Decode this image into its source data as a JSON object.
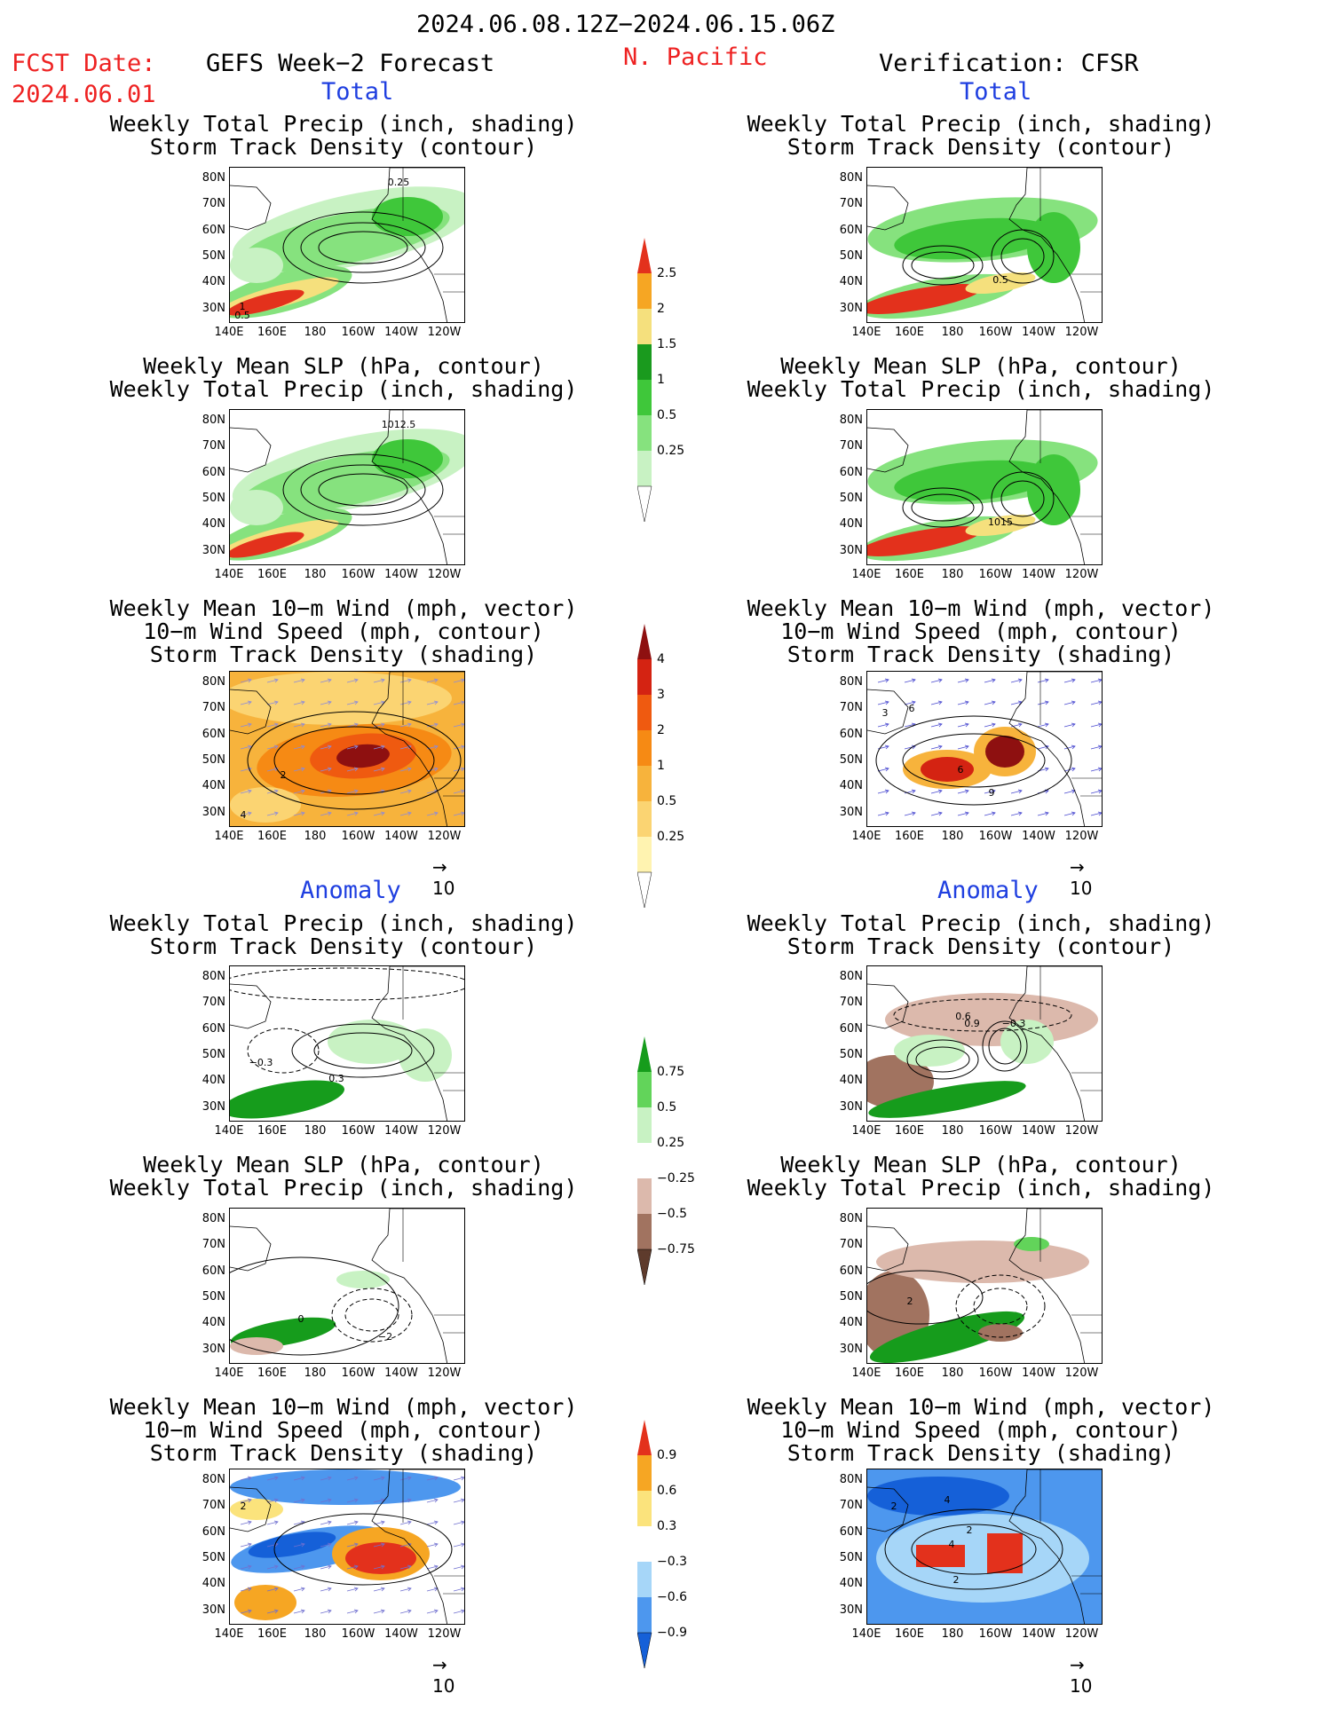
{
  "header": {
    "period": "2024.06.08.12Z−2024.06.15.06Z",
    "fcst_label": "FCST Date:",
    "fcst_date": "2024.06.01",
    "model": "GEFS Week−2 Forecast",
    "region": "N. Pacific",
    "verification": "Verification: CFSR"
  },
  "sections": {
    "total": "Total",
    "anomaly": "Anomaly"
  },
  "titles": {
    "precip_std": "Weekly Total Precip (inch, shading)\nStorm Track Density (contour)",
    "slp_precip": "Weekly Mean SLP (hPa, contour)\nWeekly Total Precip (inch, shading)",
    "wind_std": "Weekly Mean 10−m Wind (mph, vector)\n10−m Wind Speed (mph, contour)\nStorm Track Density (shading)"
  },
  "axes": {
    "lat_labels": [
      "80N",
      "70N",
      "60N",
      "50N",
      "40N",
      "30N"
    ],
    "lon_labels": [
      "140E",
      "160E",
      "180",
      "160W",
      "140W",
      "120W"
    ]
  },
  "vector_ref": "10",
  "colors": {
    "precip_levels": [
      "#c8f2c3",
      "#86e27e",
      "#3fc73a",
      "#1a9a1e",
      "#f5e07d",
      "#f6a623",
      "#e3311c"
    ],
    "std_levels": [
      "#fff3b0",
      "#fbd472",
      "#f7b33c",
      "#f68a14",
      "#ef5a10",
      "#d42312",
      "#8e1010"
    ],
    "precip_anom": [
      "#5e3b2c",
      "#a17360",
      "#dcb9ac",
      "#ffffff",
      "#c8f2c3",
      "#62d45a",
      "#169c1c"
    ],
    "std_anom": [
      "#1560d8",
      "#4d97ee",
      "#a6d6f8",
      "#ffffff",
      "#fbe37c",
      "#f6a623",
      "#e3311c"
    ]
  },
  "colorbars": [
    {
      "labels": [
        "2.5",
        "2",
        "1.5",
        "1",
        "0.5",
        "0.25"
      ]
    },
    {
      "labels": [
        "4",
        "3",
        "2",
        "1",
        "0.5",
        "0.25"
      ]
    },
    {
      "labels": [
        "0.75",
        "0.5",
        "0.25",
        "−0.25",
        "−0.5",
        "−0.75"
      ]
    },
    {
      "labels": [
        "0.9",
        "0.6",
        "0.3",
        "−0.3",
        "−0.6",
        "−0.9"
      ]
    }
  ],
  "panel_labels": {
    "fc_total_precip": [
      "0.25",
      "1",
      "0.5"
    ],
    "vf_total_precip": [
      "0.5"
    ],
    "fc_total_slp": [
      "1012.5"
    ],
    "vf_total_slp": [
      "1015"
    ],
    "fc_total_wind": [
      "2",
      "4"
    ],
    "vf_total_wind": [
      "6",
      "6",
      "9",
      "3"
    ],
    "fc_anom_precip": [
      "−0.3",
      "0.3"
    ],
    "vf_anom_precip": [
      "0.6",
      "0.9",
      "−0.3"
    ],
    "fc_anom_slp": [
      "0",
      "−2"
    ],
    "vf_anom_slp": [
      "2"
    ],
    "fc_anom_wind": [
      "2"
    ],
    "vf_anom_wind": [
      "2",
      "4",
      "4",
      "2",
      "2"
    ]
  },
  "chart_data": [
    {
      "type": "heatmap",
      "panel": "forecast-total-precip",
      "title": "Weekly Total Precip (inch, shading)\nStorm Track Density (contour)",
      "xlabel": "",
      "ylabel": "",
      "x_range": [
        "140E",
        "120W"
      ],
      "y_range": [
        "30N",
        "80N"
      ],
      "contour_labels": [
        "0.25",
        "1",
        "0.5"
      ],
      "colorbar_levels": [
        0.25,
        0.5,
        1,
        1.5,
        2,
        2.5
      ]
    },
    {
      "type": "heatmap",
      "panel": "verification-total-precip",
      "title": "Weekly Total Precip (inch, shading)\nStorm Track Density (contour)",
      "x_range": [
        "140E",
        "120W"
      ],
      "y_range": [
        "30N",
        "80N"
      ],
      "contour_labels": [
        "0.5"
      ],
      "colorbar_levels": [
        0.25,
        0.5,
        1,
        1.5,
        2,
        2.5
      ]
    },
    {
      "type": "heatmap",
      "panel": "forecast-total-slp",
      "title": "Weekly Mean SLP (hPa, contour)\nWeekly Total Precip (inch, shading)",
      "contour_labels": [
        "1012.5"
      ],
      "colorbar_levels": [
        0.25,
        0.5,
        1,
        1.5,
        2,
        2.5
      ]
    },
    {
      "type": "heatmap",
      "panel": "verification-total-slp",
      "title": "Weekly Mean SLP (hPa, contour)\nWeekly Total Precip (inch, shading)",
      "contour_labels": [
        "1015"
      ],
      "colorbar_levels": [
        0.25,
        0.5,
        1,
        1.5,
        2,
        2.5
      ]
    },
    {
      "type": "heatmap",
      "panel": "forecast-total-wind",
      "title": "Weekly Mean 10−m Wind (mph, vector)\n10−m Wind Speed (mph, contour)\nStorm Track Density (shading)",
      "contour_labels": [
        "2",
        "4"
      ],
      "colorbar_levels": [
        0.25,
        0.5,
        1,
        2,
        3,
        4
      ]
    },
    {
      "type": "heatmap",
      "panel": "verification-total-wind",
      "title": "Weekly Mean 10−m Wind (mph, vector)\n10−m Wind Speed (mph, contour)\nStorm Track Density (shading)",
      "contour_labels": [
        "6",
        "6",
        "9",
        "3"
      ],
      "colorbar_levels": [
        0.25,
        0.5,
        1,
        2,
        3,
        4
      ]
    },
    {
      "type": "heatmap",
      "panel": "forecast-anomaly-precip",
      "contour_labels": [
        "−0.3",
        "0.3"
      ],
      "colorbar_levels": [
        -0.75,
        -0.5,
        -0.25,
        0.25,
        0.5,
        0.75
      ]
    },
    {
      "type": "heatmap",
      "panel": "verification-anomaly-precip",
      "contour_labels": [
        "0.6",
        "0.9",
        "−0.3"
      ],
      "colorbar_levels": [
        -0.75,
        -0.5,
        -0.25,
        0.25,
        0.5,
        0.75
      ]
    },
    {
      "type": "heatmap",
      "panel": "forecast-anomaly-slp",
      "contour_labels": [
        "0",
        "−2"
      ],
      "colorbar_levels": [
        -0.75,
        -0.5,
        -0.25,
        0.25,
        0.5,
        0.75
      ]
    },
    {
      "type": "heatmap",
      "panel": "verification-anomaly-slp",
      "contour_labels": [
        "2"
      ],
      "colorbar_levels": [
        -0.75,
        -0.5,
        -0.25,
        0.25,
        0.5,
        0.75
      ]
    },
    {
      "type": "heatmap",
      "panel": "forecast-anomaly-wind",
      "contour_labels": [
        "2"
      ],
      "colorbar_levels": [
        -0.9,
        -0.6,
        -0.3,
        0.3,
        0.6,
        0.9
      ]
    },
    {
      "type": "heatmap",
      "panel": "verification-anomaly-wind",
      "contour_labels": [
        "2",
        "4",
        "4",
        "2",
        "2"
      ],
      "colorbar_levels": [
        -0.9,
        -0.6,
        -0.3,
        0.3,
        0.6,
        0.9
      ]
    }
  ]
}
